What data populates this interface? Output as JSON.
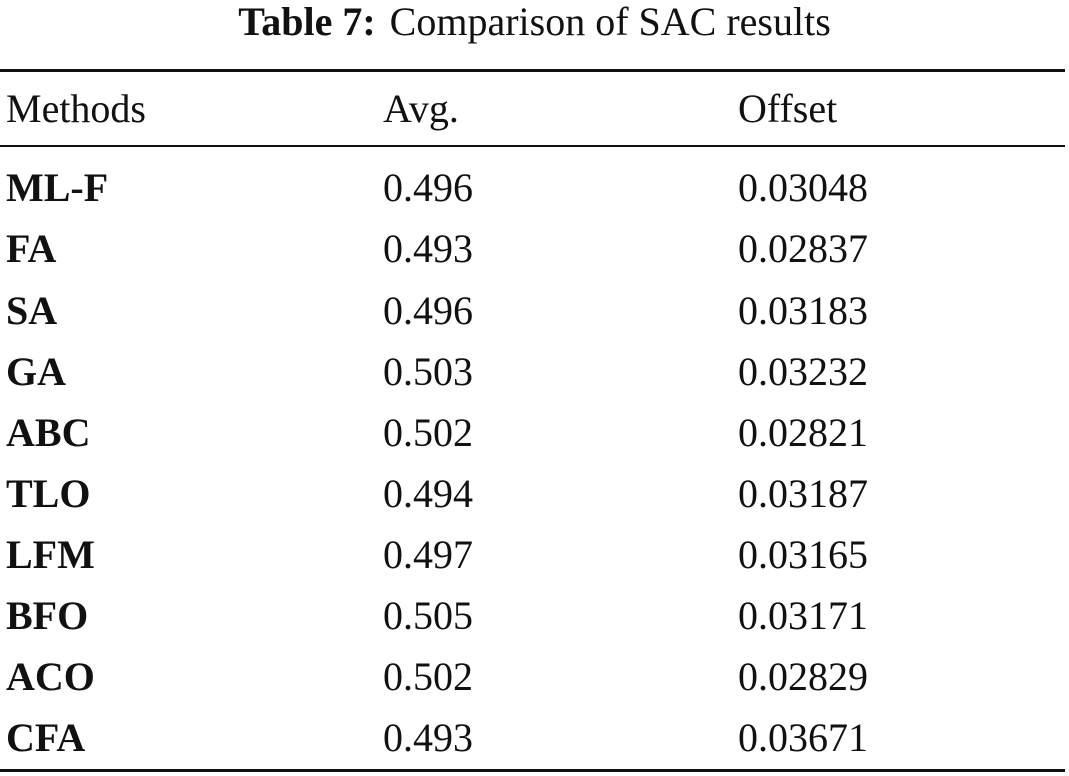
{
  "caption": {
    "label": "Table 7:",
    "text": "Comparison of SAC results"
  },
  "table": {
    "headers": [
      "Methods",
      "Avg.",
      "Offset"
    ],
    "rows": [
      [
        "ML-F",
        "0.496",
        "0.03048"
      ],
      [
        "FA",
        "0.493",
        "0.02837"
      ],
      [
        "SA",
        "0.496",
        "0.03183"
      ],
      [
        "GA",
        "0.503",
        "0.03232"
      ],
      [
        "ABC",
        "0.502",
        "0.02821"
      ],
      [
        "TLO",
        "0.494",
        "0.03187"
      ],
      [
        "LFM",
        "0.497",
        "0.03165"
      ],
      [
        "BFO",
        "0.505",
        "0.03171"
      ],
      [
        "ACO",
        "0.502",
        "0.02829"
      ],
      [
        "CFA",
        "0.493",
        "0.03671"
      ]
    ]
  }
}
